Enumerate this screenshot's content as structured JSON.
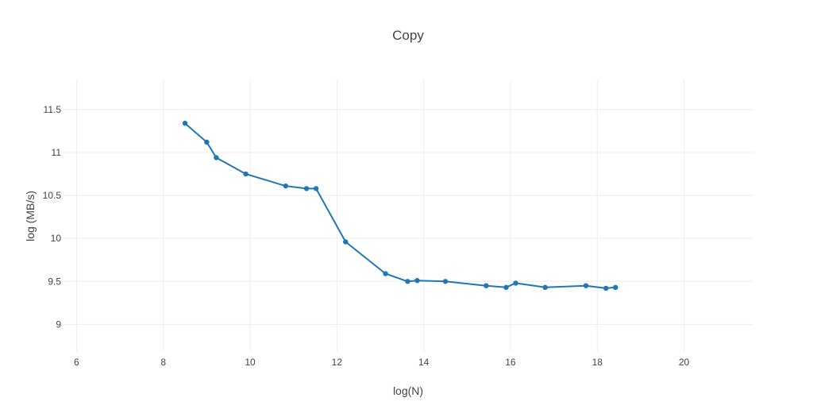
{
  "chart_data": {
    "type": "line",
    "title": "Copy",
    "xlabel": "log(N)",
    "ylabel": "log (MB/s)",
    "xlim": [
      5.7,
      21.6
    ],
    "ylim": [
      8.68,
      11.85
    ],
    "x_ticks": [
      6,
      8,
      10,
      12,
      14,
      16,
      18,
      20
    ],
    "y_ticks": [
      9,
      9.5,
      10,
      10.5,
      11,
      11.5
    ],
    "grid": true,
    "legend": "none",
    "series": [
      {
        "color": "#1f77b4",
        "x": [
          8.5,
          9.0,
          9.22,
          9.9,
          10.82,
          11.3,
          11.52,
          12.2,
          13.12,
          13.63,
          13.85,
          14.5,
          15.44,
          15.9,
          16.12,
          16.8,
          17.74,
          18.2,
          18.42
        ],
        "y": [
          11.34,
          11.12,
          10.94,
          10.75,
          10.61,
          10.58,
          10.58,
          9.96,
          9.59,
          9.5,
          9.51,
          9.5,
          9.45,
          9.43,
          9.48,
          9.43,
          9.45,
          9.42,
          9.43
        ]
      }
    ]
  }
}
